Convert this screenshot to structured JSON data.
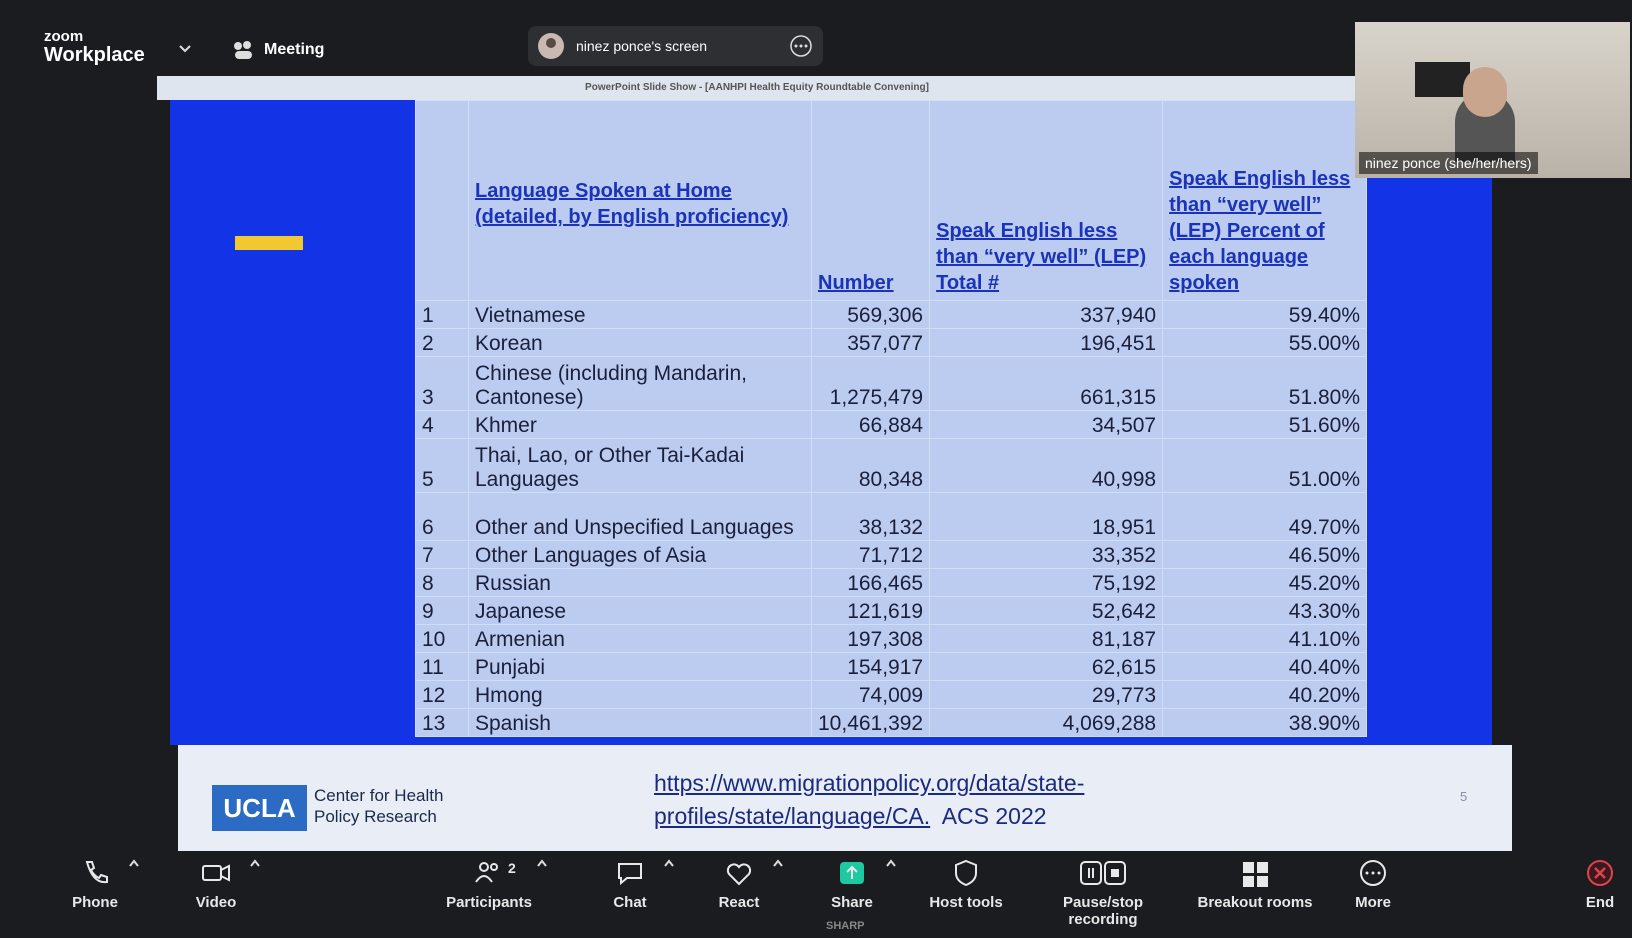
{
  "app": {
    "logo_top": "zoom",
    "logo_bottom": "Workplace",
    "meeting": "Meeting",
    "share_label": "ninez ponce's screen",
    "window_title": "PowerPoint Slide Show - [AANHPI Health Equity Roundtable Convening]",
    "participant_name": "ninez ponce (she/her/hers)",
    "brand": "SHARP"
  },
  "table": {
    "headers": [
      "Language Spoken at Home (detailed, by English proficiency)",
      "Number",
      "Speak English less than “very well” (LEP) Total #",
      "Speak English less than “very well” (LEP) Percent of each language spoken"
    ],
    "rows": [
      [
        "1",
        "Vietnamese",
        "569,306",
        "337,940",
        "59.40%"
      ],
      [
        "2",
        "Korean",
        "357,077",
        "196,451",
        "55.00%"
      ],
      [
        "3",
        "Chinese (including Mandarin, Cantonese)",
        "1,275,479",
        "661,315",
        "51.80%"
      ],
      [
        "4",
        "Khmer",
        "66,884",
        "34,507",
        "51.60%"
      ],
      [
        "5",
        "Thai, Lao, or Other Tai-Kadai Languages",
        "80,348",
        "40,998",
        "51.00%"
      ],
      [
        "6",
        "Other and Unspecified Languages",
        "38,132",
        "18,951",
        "49.70%"
      ],
      [
        "7",
        "Other Languages of Asia",
        "71,712",
        "33,352",
        "46.50%"
      ],
      [
        "8",
        "Russian",
        "166,465",
        "75,192",
        "45.20%"
      ],
      [
        "9",
        "Japanese",
        "121,619",
        "52,642",
        "43.30%"
      ],
      [
        "10",
        "Armenian",
        "197,308",
        "81,187",
        "41.10%"
      ],
      [
        "11",
        "Punjabi",
        "154,917",
        "62,615",
        "40.40%"
      ],
      [
        "12",
        "Hmong",
        "74,009",
        "29,773",
        "40.20%"
      ],
      [
        "13",
        "Spanish",
        "10,461,392",
        "4,069,288",
        "38.90%"
      ]
    ]
  },
  "footer": {
    "org_logo": "UCLA",
    "org_name": "Center for Health Policy Research",
    "link": "https://www.migrationpolicy.org/data/state-profiles/state/language/CA.",
    "note": "ACS 2022",
    "slide_number": "5"
  },
  "toolbar": {
    "participants_count": "2",
    "buttons": [
      "Phone",
      "Video",
      "Participants",
      "Chat",
      "React",
      "Share",
      "Host tools",
      "Pause/stop recording",
      "Breakout rooms",
      "More",
      "End"
    ]
  }
}
